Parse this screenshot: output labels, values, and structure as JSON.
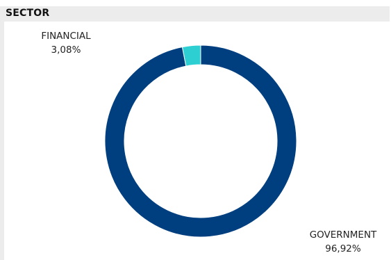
{
  "panel": {
    "title": "SECTOR"
  },
  "chart_data": {
    "type": "pie",
    "donut": true,
    "categories": [
      "FINANCIAL",
      "GOVERNMENT"
    ],
    "values": [
      3.08,
      96.92
    ],
    "value_labels": [
      "3,08%",
      "96,92%"
    ],
    "colors": [
      "#2ecfd2",
      "#003f7f"
    ],
    "title": "",
    "legend": "none"
  }
}
